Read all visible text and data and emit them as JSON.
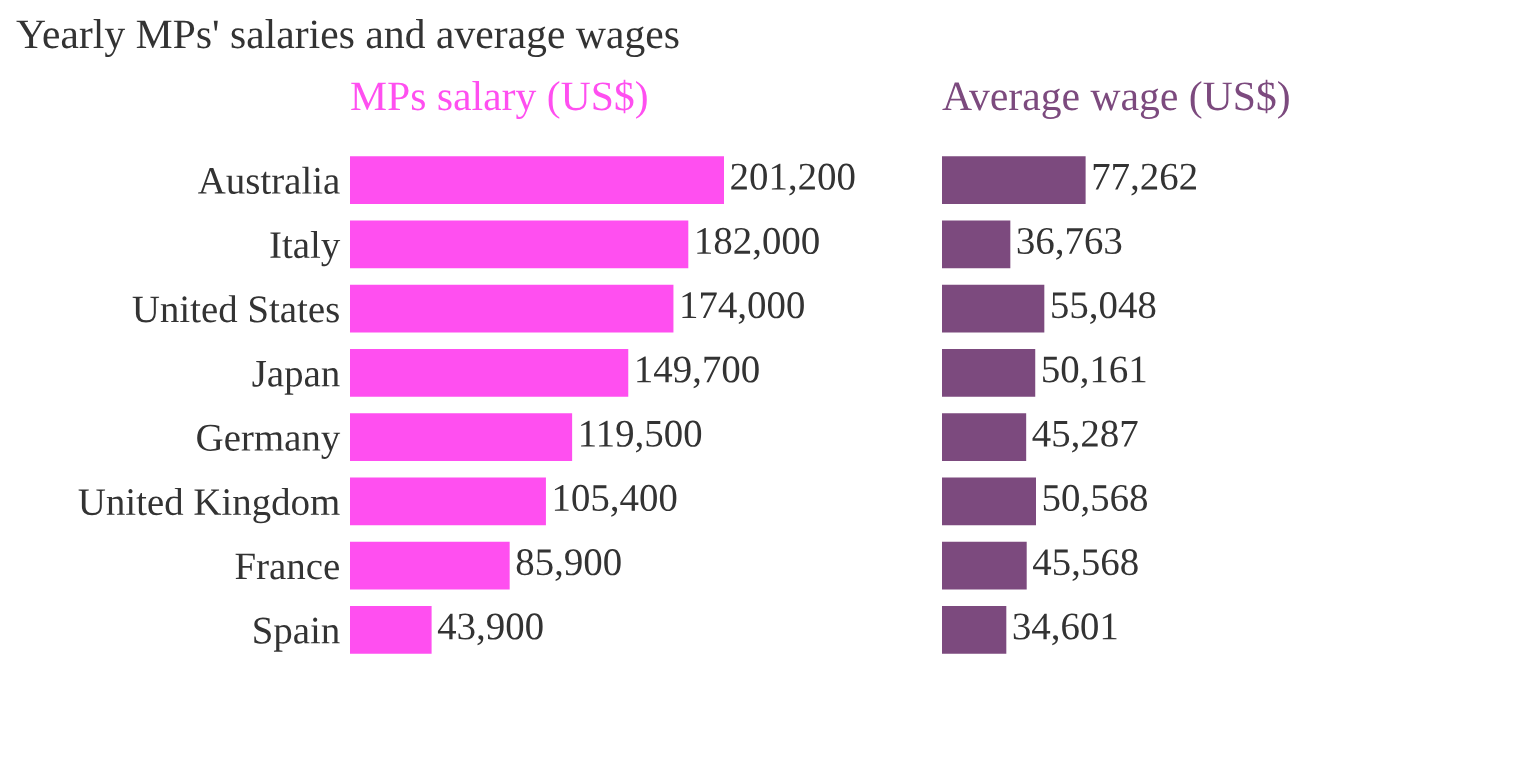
{
  "chart_data": [
    {
      "type": "bar",
      "orientation": "horizontal",
      "title": "Yearly MPs' salaries and average wages",
      "subtitle": "MPs salary (US$)",
      "categories": [
        "Australia",
        "Italy",
        "United States",
        "Japan",
        "Germany",
        "United Kingdom",
        "France",
        "Spain"
      ],
      "series": [
        {
          "color": "#ff4ff0",
          "values": [
            201200,
            182000,
            174000,
            149700,
            119500,
            105400,
            85900,
            43900
          ],
          "value_labels": [
            "201,200",
            "182,000",
            "174,000",
            "149,700",
            "119,500",
            "105,400",
            "85,900",
            "43,900"
          ]
        }
      ],
      "tick_labels": "y"
    },
    {
      "type": "bar",
      "orientation": "horizontal",
      "subtitle": "Average wage (US$)",
      "categories": [
        null,
        null,
        null,
        null,
        null,
        null,
        null,
        null
      ],
      "series": [
        {
          "color": "#7c4a7e",
          "values": [
            77262,
            36763,
            55048,
            50161,
            45287,
            50568,
            45568,
            34601
          ],
          "value_labels": [
            "77,262",
            "36,763",
            "55,048",
            "50,161",
            "45,287",
            "50,568",
            "45,568",
            "34,601"
          ]
        }
      ]
    }
  ]
}
